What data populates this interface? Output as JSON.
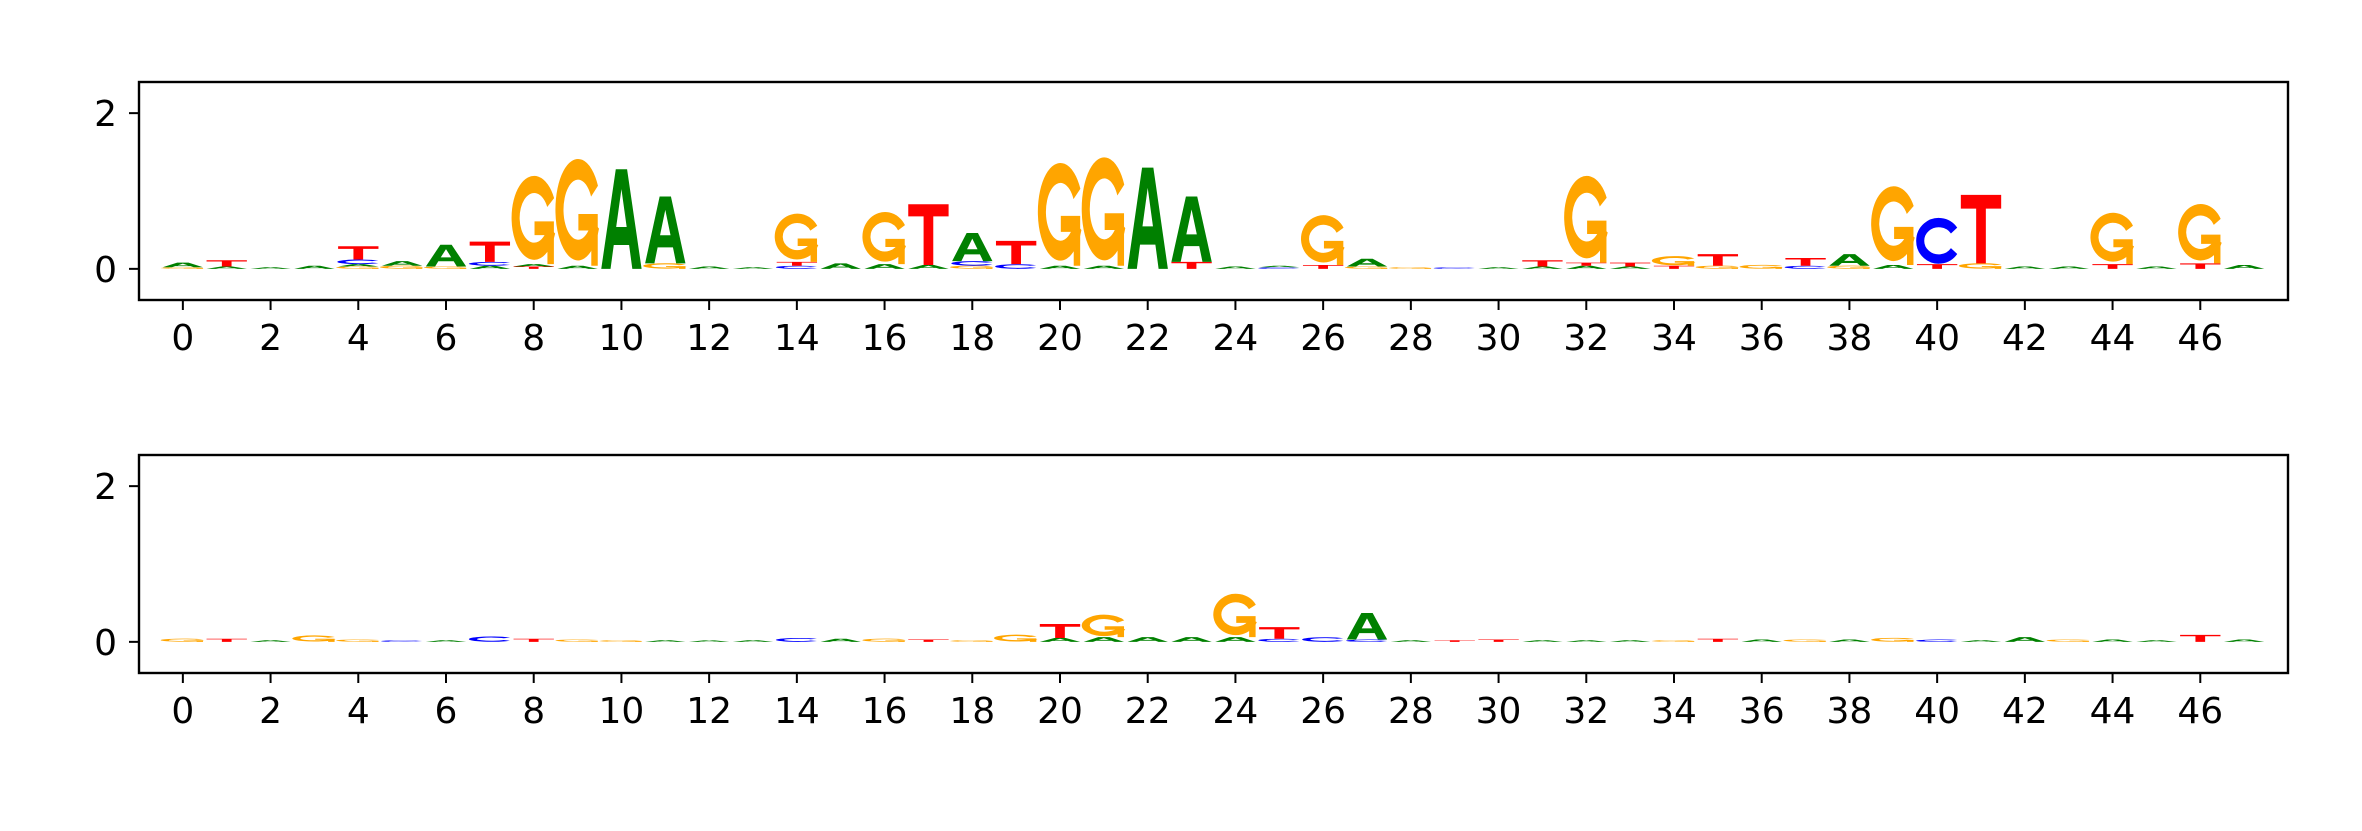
{
  "colors": {
    "A": "#008000",
    "C": "#0000ff",
    "G": "#ffa500",
    "T": "#ff0000"
  },
  "chart_data": [
    {
      "type": "logo",
      "title": "",
      "xlabel": "",
      "ylabel": "",
      "xlim": [
        -1,
        48
      ],
      "ylim": [
        -0.4,
        2.4
      ],
      "xticks": [
        0,
        2,
        4,
        6,
        8,
        10,
        12,
        14,
        16,
        18,
        20,
        22,
        24,
        26,
        28,
        30,
        32,
        34,
        36,
        38,
        40,
        42,
        44,
        46
      ],
      "yticks": [
        0,
        2
      ],
      "positions": [
        {
          "x": 0,
          "letters": [
            [
              "G",
              0.02
            ],
            [
              "A",
              0.06
            ]
          ]
        },
        {
          "x": 1,
          "letters": [
            [
              "A",
              0.03
            ],
            [
              "T",
              0.08
            ]
          ]
        },
        {
          "x": 2,
          "letters": [
            [
              "A",
              0.02
            ]
          ]
        },
        {
          "x": 3,
          "letters": [
            [
              "A",
              0.04
            ]
          ]
        },
        {
          "x": 4,
          "letters": [
            [
              "G",
              0.03
            ],
            [
              "A",
              0.03
            ],
            [
              "C",
              0.06
            ],
            [
              "T",
              0.17
            ]
          ]
        },
        {
          "x": 5,
          "letters": [
            [
              "G",
              0.04
            ],
            [
              "A",
              0.06
            ]
          ]
        },
        {
          "x": 6,
          "letters": [
            [
              "G",
              0.03
            ],
            [
              "A",
              0.28
            ]
          ]
        },
        {
          "x": 7,
          "letters": [
            [
              "A",
              0.04
            ],
            [
              "C",
              0.05
            ],
            [
              "T",
              0.26
            ]
          ]
        },
        {
          "x": 8,
          "letters": [
            [
              "T",
              0.03
            ],
            [
              "A",
              0.03
            ],
            [
              "G",
              1.1
            ]
          ]
        },
        {
          "x": 9,
          "letters": [
            [
              "A",
              0.04
            ],
            [
              "G",
              1.33
            ]
          ]
        },
        {
          "x": 10,
          "letters": [
            [
              "A",
              1.28
            ]
          ]
        },
        {
          "x": 11,
          "letters": [
            [
              "G",
              0.07
            ],
            [
              "A",
              0.86
            ]
          ]
        },
        {
          "x": 12,
          "letters": [
            [
              "A",
              0.03
            ]
          ]
        },
        {
          "x": 13,
          "letters": [
            [
              "A",
              0.02
            ]
          ]
        },
        {
          "x": 14,
          "letters": [
            [
              "C",
              0.04
            ],
            [
              "T",
              0.05
            ],
            [
              "G",
              0.6
            ]
          ]
        },
        {
          "x": 15,
          "letters": [
            [
              "A",
              0.07
            ]
          ]
        },
        {
          "x": 16,
          "letters": [
            [
              "A",
              0.06
            ],
            [
              "G",
              0.65
            ]
          ]
        },
        {
          "x": 17,
          "letters": [
            [
              "A",
              0.05
            ],
            [
              "T",
              0.78
            ]
          ]
        },
        {
          "x": 18,
          "letters": [
            [
              "G",
              0.04
            ],
            [
              "C",
              0.06
            ],
            [
              "A",
              0.36
            ]
          ]
        },
        {
          "x": 19,
          "letters": [
            [
              "C",
              0.06
            ],
            [
              "T",
              0.3
            ]
          ]
        },
        {
          "x": 20,
          "letters": [
            [
              "A",
              0.04
            ],
            [
              "G",
              1.28
            ]
          ]
        },
        {
          "x": 21,
          "letters": [
            [
              "A",
              0.04
            ],
            [
              "G",
              1.35
            ]
          ]
        },
        {
          "x": 22,
          "letters": [
            [
              "A",
              1.3
            ]
          ]
        },
        {
          "x": 23,
          "letters": [
            [
              "T",
              0.09
            ],
            [
              "A",
              0.84
            ]
          ]
        },
        {
          "x": 24,
          "letters": [
            [
              "A",
              0.03
            ]
          ]
        },
        {
          "x": 25,
          "letters": [
            [
              "C",
              0.02
            ],
            [
              "A",
              0.02
            ]
          ]
        },
        {
          "x": 26,
          "letters": [
            [
              "T",
              0.05
            ],
            [
              "G",
              0.62
            ]
          ]
        },
        {
          "x": 27,
          "letters": [
            [
              "G",
              0.03
            ],
            [
              "A",
              0.1
            ]
          ]
        },
        {
          "x": 28,
          "letters": [
            [
              "G",
              0.02
            ]
          ]
        },
        {
          "x": 29,
          "letters": [
            [
              "C",
              0.01
            ]
          ]
        },
        {
          "x": 30,
          "letters": [
            [
              "A",
              0.02
            ]
          ]
        },
        {
          "x": 31,
          "letters": [
            [
              "A",
              0.03
            ],
            [
              "T",
              0.08
            ]
          ]
        },
        {
          "x": 32,
          "letters": [
            [
              "A",
              0.04
            ],
            [
              "T",
              0.04
            ],
            [
              "G",
              1.08
            ]
          ]
        },
        {
          "x": 33,
          "letters": [
            [
              "A",
              0.03
            ],
            [
              "T",
              0.05
            ]
          ]
        },
        {
          "x": 34,
          "letters": [
            [
              "T",
              0.04
            ],
            [
              "G",
              0.12
            ]
          ]
        },
        {
          "x": 35,
          "letters": [
            [
              "G",
              0.04
            ],
            [
              "T",
              0.15
            ]
          ]
        },
        {
          "x": 36,
          "letters": [
            [
              "G",
              0.05
            ]
          ]
        },
        {
          "x": 37,
          "letters": [
            [
              "C",
              0.04
            ],
            [
              "T",
              0.1
            ]
          ]
        },
        {
          "x": 38,
          "letters": [
            [
              "G",
              0.04
            ],
            [
              "A",
              0.15
            ]
          ]
        },
        {
          "x": 39,
          "letters": [
            [
              "A",
              0.05
            ],
            [
              "G",
              0.98
            ]
          ]
        },
        {
          "x": 40,
          "letters": [
            [
              "T",
              0.06
            ],
            [
              "C",
              0.6
            ]
          ]
        },
        {
          "x": 41,
          "letters": [
            [
              "G",
              0.07
            ],
            [
              "T",
              0.88
            ]
          ]
        },
        {
          "x": 42,
          "letters": [
            [
              "A",
              0.03
            ]
          ]
        },
        {
          "x": 43,
          "letters": [
            [
              "A",
              0.03
            ]
          ]
        },
        {
          "x": 44,
          "letters": [
            [
              "T",
              0.06
            ],
            [
              "G",
              0.64
            ]
          ]
        },
        {
          "x": 45,
          "letters": [
            [
              "A",
              0.03
            ]
          ]
        },
        {
          "x": 46,
          "letters": [
            [
              "T",
              0.07
            ],
            [
              "G",
              0.74
            ]
          ]
        },
        {
          "x": 47,
          "letters": [
            [
              "A",
              0.05
            ]
          ]
        }
      ]
    },
    {
      "type": "logo",
      "title": "",
      "xlabel": "",
      "ylabel": "",
      "xlim": [
        -1,
        48
      ],
      "ylim": [
        -0.4,
        2.4
      ],
      "xticks": [
        0,
        2,
        4,
        6,
        8,
        10,
        12,
        14,
        16,
        18,
        20,
        22,
        24,
        26,
        28,
        30,
        32,
        34,
        36,
        38,
        40,
        42,
        44,
        46
      ],
      "yticks": [
        0,
        2
      ],
      "positions": [
        {
          "x": 0,
          "letters": [
            [
              "G",
              0.04
            ]
          ]
        },
        {
          "x": 1,
          "letters": [
            [
              "T",
              0.04
            ]
          ]
        },
        {
          "x": 2,
          "letters": [
            [
              "A",
              0.02
            ]
          ]
        },
        {
          "x": 3,
          "letters": [
            [
              "G",
              0.08
            ]
          ]
        },
        {
          "x": 4,
          "letters": [
            [
              "G",
              0.03
            ]
          ]
        },
        {
          "x": 5,
          "letters": [
            [
              "C",
              0.02
            ]
          ]
        },
        {
          "x": 6,
          "letters": [
            [
              "A",
              0.02
            ]
          ]
        },
        {
          "x": 7,
          "letters": [
            [
              "C",
              0.07
            ]
          ]
        },
        {
          "x": 8,
          "letters": [
            [
              "T",
              0.04
            ]
          ]
        },
        {
          "x": 9,
          "letters": [
            [
              "G",
              0.03
            ]
          ]
        },
        {
          "x": 10,
          "letters": [
            [
              "G",
              0.02
            ]
          ]
        },
        {
          "x": 11,
          "letters": [
            [
              "A",
              0.02
            ]
          ]
        },
        {
          "x": 12,
          "letters": [
            [
              "A",
              0.01
            ]
          ]
        },
        {
          "x": 13,
          "letters": [
            [
              "A",
              0.02
            ]
          ]
        },
        {
          "x": 14,
          "letters": [
            [
              "C",
              0.05
            ]
          ]
        },
        {
          "x": 15,
          "letters": [
            [
              "A",
              0.04
            ]
          ]
        },
        {
          "x": 16,
          "letters": [
            [
              "G",
              0.04
            ]
          ]
        },
        {
          "x": 17,
          "letters": [
            [
              "T",
              0.03
            ]
          ]
        },
        {
          "x": 18,
          "letters": [
            [
              "G",
              0.02
            ]
          ]
        },
        {
          "x": 19,
          "letters": [
            [
              "G",
              0.09
            ]
          ]
        },
        {
          "x": 20,
          "letters": [
            [
              "A",
              0.05
            ],
            [
              "T",
              0.18
            ]
          ]
        },
        {
          "x": 21,
          "letters": [
            [
              "A",
              0.06
            ],
            [
              "G",
              0.28
            ]
          ]
        },
        {
          "x": 22,
          "letters": [
            [
              "A",
              0.06
            ]
          ]
        },
        {
          "x": 23,
          "letters": [
            [
              "A",
              0.06
            ]
          ]
        },
        {
          "x": 24,
          "letters": [
            [
              "A",
              0.06
            ],
            [
              "G",
              0.54
            ]
          ]
        },
        {
          "x": 25,
          "letters": [
            [
              "C",
              0.04
            ],
            [
              "T",
              0.15
            ]
          ]
        },
        {
          "x": 26,
          "letters": [
            [
              "C",
              0.06
            ]
          ]
        },
        {
          "x": 27,
          "letters": [
            [
              "C",
              0.03
            ],
            [
              "A",
              0.34
            ]
          ]
        },
        {
          "x": 28,
          "letters": [
            [
              "A",
              0.02
            ]
          ]
        },
        {
          "x": 29,
          "letters": [
            [
              "T",
              0.02
            ]
          ]
        },
        {
          "x": 30,
          "letters": [
            [
              "T",
              0.03
            ]
          ]
        },
        {
          "x": 31,
          "letters": [
            [
              "A",
              0.02
            ]
          ]
        },
        {
          "x": 32,
          "letters": [
            [
              "A",
              0.02
            ]
          ]
        },
        {
          "x": 33,
          "letters": [
            [
              "A",
              0.02
            ]
          ]
        },
        {
          "x": 34,
          "letters": [
            [
              "G",
              0.02
            ]
          ]
        },
        {
          "x": 35,
          "letters": [
            [
              "T",
              0.04
            ]
          ]
        },
        {
          "x": 36,
          "letters": [
            [
              "A",
              0.03
            ]
          ]
        },
        {
          "x": 37,
          "letters": [
            [
              "G",
              0.03
            ]
          ]
        },
        {
          "x": 38,
          "letters": [
            [
              "A",
              0.03
            ]
          ]
        },
        {
          "x": 39,
          "letters": [
            [
              "G",
              0.05
            ]
          ]
        },
        {
          "x": 40,
          "letters": [
            [
              "C",
              0.03
            ]
          ]
        },
        {
          "x": 41,
          "letters": [
            [
              "A",
              0.02
            ]
          ]
        },
        {
          "x": 42,
          "letters": [
            [
              "A",
              0.06
            ]
          ]
        },
        {
          "x": 43,
          "letters": [
            [
              "G",
              0.03
            ]
          ]
        },
        {
          "x": 44,
          "letters": [
            [
              "A",
              0.03
            ]
          ]
        },
        {
          "x": 45,
          "letters": [
            [
              "A",
              0.02
            ]
          ]
        },
        {
          "x": 46,
          "letters": [
            [
              "T",
              0.09
            ]
          ]
        },
        {
          "x": 47,
          "letters": [
            [
              "A",
              0.03
            ]
          ]
        }
      ]
    }
  ]
}
